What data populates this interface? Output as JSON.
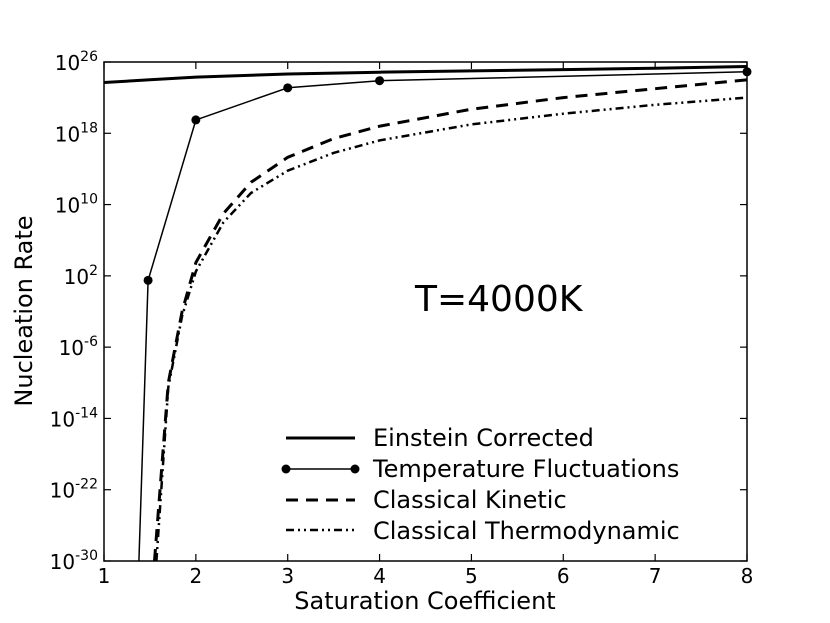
{
  "chart_data": {
    "type": "line",
    "xlabel": "Saturation Coefficient",
    "ylabel": "Nucleation Rate",
    "xlim": [
      1,
      8
    ],
    "ylim_log10": [
      -30,
      26
    ],
    "yscale": "log",
    "xticks": [
      "1",
      "2",
      "3",
      "4",
      "5",
      "6",
      "7",
      "8"
    ],
    "yticks": [
      {
        "base": "10",
        "exp": "26",
        "log10": 26
      },
      {
        "base": "10",
        "exp": "18",
        "log10": 18
      },
      {
        "base": "10",
        "exp": "10",
        "log10": 10
      },
      {
        "base": "10",
        "exp": "2",
        "log10": 2
      },
      {
        "base": "10",
        "exp": "-6",
        "log10": -6
      },
      {
        "base": "10",
        "exp": "-14",
        "log10": -14
      },
      {
        "base": "10",
        "exp": "-22",
        "log10": -22
      },
      {
        "base": "10",
        "exp": "-30",
        "log10": -30
      }
    ],
    "annotation": "T=4000K",
    "grid": false,
    "legend_position": "lower-right",
    "series": [
      {
        "name": "Einstein Corrected",
        "style": "solid-thick",
        "color": "#000000",
        "x": [
          1,
          1.5,
          2,
          3,
          4,
          5,
          6,
          7,
          8
        ],
        "log10_y": [
          23.7,
          24.0,
          24.3,
          24.65,
          24.85,
          25.0,
          25.15,
          25.3,
          25.5
        ]
      },
      {
        "name": "Temperature Fluctuations",
        "style": "solid-thin-markers",
        "color": "#000000",
        "x": [
          1.38,
          1.48,
          2,
          3,
          4,
          8
        ],
        "log10_y": [
          -30,
          1.5,
          19.5,
          23.1,
          23.9,
          24.9
        ]
      },
      {
        "name": "Classical Kinetic",
        "style": "dashed",
        "color": "#000000",
        "x": [
          1.55,
          1.7,
          1.85,
          2,
          2.3,
          2.6,
          3,
          3.5,
          4,
          5,
          6,
          7,
          8
        ],
        "log10_y": [
          -30,
          -10.0,
          -2.0,
          3.5,
          9.0,
          12.5,
          15.3,
          17.4,
          18.8,
          20.7,
          22.0,
          23.0,
          24.0
        ]
      },
      {
        "name": "Classical Thermodynamic",
        "style": "dash-dot-dot",
        "color": "#000000",
        "x": [
          1.57,
          1.7,
          1.85,
          2,
          2.3,
          2.6,
          3,
          3.5,
          4,
          5,
          6,
          7,
          8
        ],
        "log10_y": [
          -30,
          -10.5,
          -2.5,
          2.5,
          8.0,
          11.3,
          13.8,
          15.8,
          17.2,
          19.0,
          20.2,
          21.2,
          22.0
        ]
      }
    ]
  }
}
